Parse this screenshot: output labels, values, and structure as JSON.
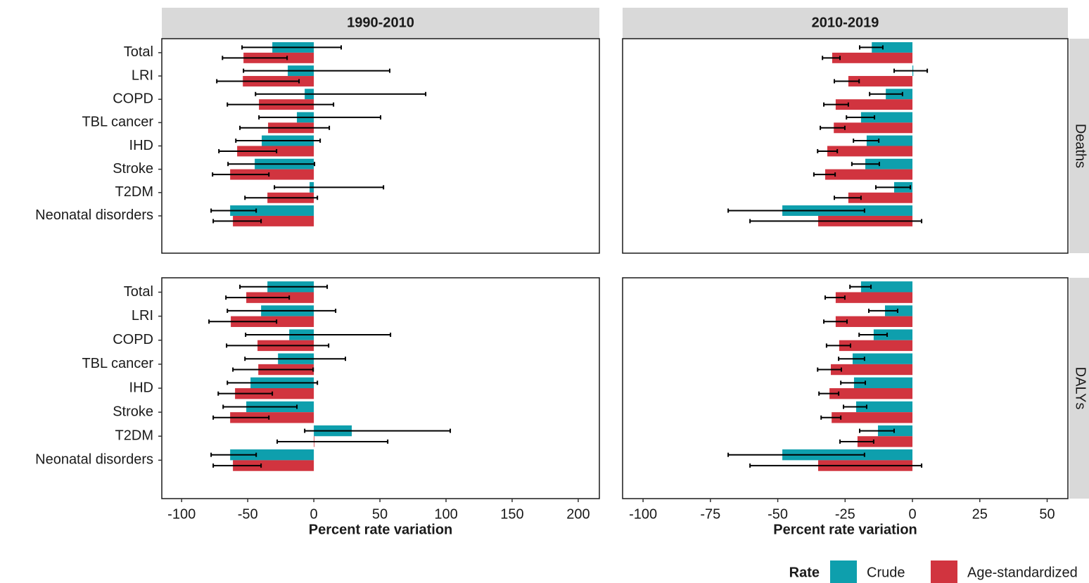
{
  "chart_data": [
    {
      "type": "bar",
      "orientation": "horizontal",
      "strip_top": "1990-2010",
      "categories": [
        "Total",
        "LRI",
        "COPD",
        "TBL cancer",
        "IHD",
        "Stroke",
        "T2DM",
        "Neonatal disorders"
      ],
      "xlim": [
        -115,
        216
      ],
      "series": [
        {
          "name": "Crude",
          "color": "#0e9fad",
          "values": [
            -31.4,
            -19.7,
            -6.9,
            -12.8,
            -39.4,
            -44.7,
            -3.2,
            -63.3
          ],
          "lower": [
            -54.3,
            -53.2,
            -44.1,
            -41.5,
            -59,
            -64.9,
            -29.8,
            -77.7
          ],
          "upper": [
            20.7,
            57.4,
            84.6,
            50.5,
            4.8,
            0.5,
            52.7,
            -43.6
          ]
        },
        {
          "name": "Age-standardized",
          "color": "#d1343f",
          "values": [
            -53.2,
            -53.7,
            -41.5,
            -34.6,
            -58,
            -63.3,
            -35.1,
            -61.2
          ],
          "lower": [
            -69.1,
            -73.4,
            -65.4,
            -55.9,
            -71.8,
            -76.6,
            -52.1,
            -76.1
          ],
          "upper": [
            -20.2,
            -11.2,
            14.9,
            11.7,
            -28.2,
            -34,
            2.7,
            -39.9
          ]
        }
      ]
    },
    {
      "type": "bar",
      "orientation": "horizontal",
      "strip_top": "2010-2019",
      "strip_right": "Deaths",
      "xlim": [
        -107.6,
        57.7
      ],
      "series": [
        {
          "color": "#0e9fad",
          "values": [
            -15.1,
            0.3,
            -9.9,
            -19.1,
            -17,
            -17.5,
            -6.8,
            -48.3
          ],
          "lower": [
            -19.6,
            -6.8,
            -15.9,
            -24.5,
            -21.9,
            -22.5,
            -13.6,
            -68.4
          ],
          "upper": [
            -11,
            5.5,
            -3.7,
            -14.1,
            -12.5,
            -12.3,
            -0.8,
            -17.8
          ]
        },
        {
          "color": "#d1343f",
          "values": [
            -29.8,
            -23.8,
            -28.5,
            -29.2,
            -31.6,
            -32.4,
            -23.8,
            -35
          ],
          "lower": [
            -33.4,
            -29,
            -32.9,
            -34.2,
            -35.2,
            -36.6,
            -29,
            -60.3
          ],
          "upper": [
            -26.9,
            -19.8,
            -23.8,
            -25.1,
            -27.9,
            -28.7,
            -19.1,
            3.4
          ]
        }
      ]
    },
    {
      "type": "bar",
      "orientation": "horizontal",
      "xlabel": "Percent rate variation",
      "categories": [
        "Total",
        "LRI",
        "COPD",
        "TBL cancer",
        "IHD",
        "Stroke",
        "T2DM",
        "Neonatal disorders"
      ],
      "xlim": [
        -115,
        216
      ],
      "xticks": [
        -100,
        -50,
        0,
        50,
        100,
        150,
        200
      ],
      "series": [
        {
          "color": "#0e9fad",
          "values": [
            -35.1,
            -39.9,
            -18.6,
            -27.1,
            -47.9,
            -51.1,
            28.7,
            -63.3
          ],
          "lower": [
            -55.9,
            -65.4,
            -51.6,
            -52.1,
            -65.4,
            -68.6,
            -6.9,
            -77.7
          ],
          "upper": [
            10.1,
            16.5,
            58,
            23.9,
            2.7,
            -12.8,
            103.2,
            -43.6
          ]
        },
        {
          "color": "#d1343f",
          "values": [
            -51.1,
            -62.8,
            -42.6,
            -42,
            -59.6,
            -63.3,
            0.3,
            -61.2
          ],
          "lower": [
            -66.5,
            -79.3,
            -66,
            -61.2,
            -72.3,
            -76.1,
            -27.7,
            -76.1
          ],
          "upper": [
            -18.6,
            -28.2,
            11.2,
            -0.5,
            -31.4,
            -34,
            55.9,
            -39.9
          ]
        }
      ]
    },
    {
      "type": "bar",
      "orientation": "horizontal",
      "strip_right": "DALYs",
      "xlabel": "Percent rate variation",
      "xlim": [
        -107.6,
        57.7
      ],
      "xticks": [
        -100,
        -75,
        -50,
        -25,
        0,
        25,
        50
      ],
      "series": [
        {
          "color": "#0e9fad",
          "values": [
            -19.1,
            -10.2,
            -14.4,
            -22.2,
            -21.7,
            -20.9,
            -12.8,
            -48.3
          ],
          "lower": [
            -23.2,
            -16.2,
            -19.8,
            -27.4,
            -26.6,
            -25.6,
            -19.6,
            -68.4
          ],
          "upper": [
            -15.4,
            -5.5,
            -9.4,
            -17.8,
            -17.5,
            -17,
            -6.8,
            -17.8
          ]
        },
        {
          "color": "#d1343f",
          "values": [
            -28.5,
            -28.5,
            -27.2,
            -30.3,
            -30.8,
            -30,
            -20.4,
            -35
          ],
          "lower": [
            -32.4,
            -32.9,
            -31.9,
            -35.2,
            -34.7,
            -33.9,
            -26.9,
            -60.3
          ],
          "upper": [
            -25.1,
            -24.3,
            -23,
            -26.4,
            -27.4,
            -26.6,
            -14.4,
            3.4
          ]
        }
      ]
    }
  ],
  "legend": {
    "title": "Rate"
  }
}
